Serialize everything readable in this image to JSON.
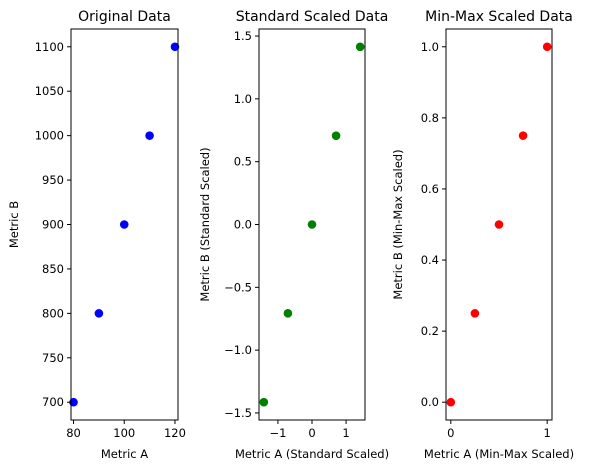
{
  "chart_data": [
    {
      "type": "scatter",
      "title": "Original Data",
      "xlabel": "Metric A",
      "ylabel": "Metric B",
      "color": "#0000ff",
      "x": [
        80,
        90,
        100,
        110,
        120
      ],
      "y": [
        700,
        800,
        900,
        1000,
        1100
      ],
      "xlim": [
        79,
        121.2
      ],
      "ylim": [
        680,
        1120
      ],
      "xticks": [
        80,
        100,
        120
      ],
      "xtick_labels": [
        "80",
        "100",
        "120"
      ],
      "yticks": [
        700,
        750,
        800,
        850,
        900,
        950,
        1000,
        1050,
        1100
      ],
      "ytick_labels": [
        "700",
        "750",
        "800",
        "850",
        "900",
        "950",
        "1000",
        "1050",
        "1100"
      ],
      "grid": false
    },
    {
      "type": "scatter",
      "title": "Standard Scaled Data",
      "xlabel": "Metric A (Standard Scaled)",
      "ylabel": "Metric B (Standard Scaled)",
      "color": "#008000",
      "x": [
        -1.414,
        -0.707,
        0,
        0.707,
        1.414
      ],
      "y": [
        -1.414,
        -0.707,
        0,
        0.707,
        1.414
      ],
      "xlim": [
        -1.556,
        1.556
      ],
      "ylim": [
        -1.556,
        1.556
      ],
      "xticks": [
        -1,
        0,
        1
      ],
      "xtick_labels": [
        "−1",
        "0",
        "1"
      ],
      "yticks": [
        -1.5,
        -1.0,
        -0.5,
        0.0,
        0.5,
        1.0,
        1.5
      ],
      "ytick_labels": [
        "−1.5",
        "−1.0",
        "−0.5",
        "0.0",
        "0.5",
        "1.0",
        "1.5"
      ],
      "grid": false
    },
    {
      "type": "scatter",
      "title": "Min-Max Scaled Data",
      "xlabel": "Metric A (Min-Max Scaled)",
      "ylabel": "Metric B (Min-Max Scaled)",
      "color": "#ff0000",
      "x": [
        0,
        0.25,
        0.5,
        0.75,
        1.0
      ],
      "y": [
        0,
        0.25,
        0.5,
        0.75,
        1.0
      ],
      "xlim": [
        -0.05,
        1.05
      ],
      "ylim": [
        -0.05,
        1.05
      ],
      "xticks": [
        0,
        1
      ],
      "xtick_labels": [
        "0",
        "1"
      ],
      "yticks": [
        0.0,
        0.2,
        0.4,
        0.6,
        0.8,
        1.0
      ],
      "ytick_labels": [
        "0.0",
        "0.2",
        "0.4",
        "0.6",
        "0.8",
        "1.0"
      ],
      "grid": false
    }
  ]
}
